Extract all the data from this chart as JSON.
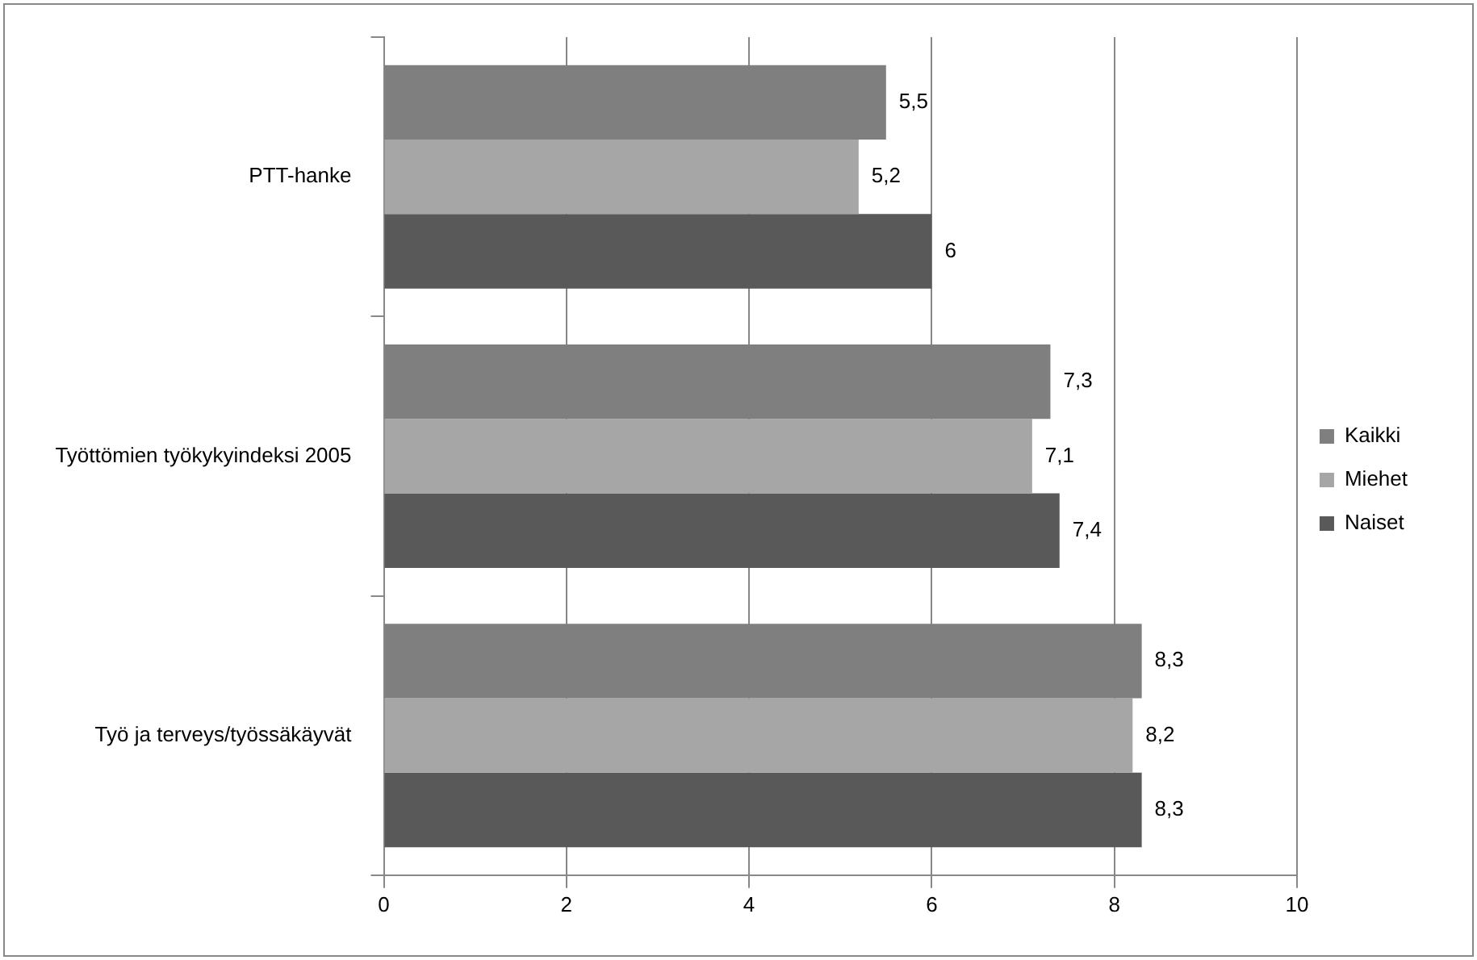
{
  "chart_data": {
    "type": "bar",
    "orientation": "horizontal",
    "categories": [
      "PTT-hanke",
      "Työttömien työkykyindeksi 2005",
      "Työ ja terveys/työssäkäyvät"
    ],
    "series": [
      {
        "name": "Kaikki",
        "color": "#7f7f7f",
        "values": [
          5.5,
          7.3,
          8.3
        ],
        "value_labels": [
          "5,5",
          "7,3",
          "8,3"
        ]
      },
      {
        "name": "Miehet",
        "color": "#a6a6a6",
        "values": [
          5.2,
          7.1,
          8.2
        ],
        "value_labels": [
          "5,2",
          "7,1",
          "8,2"
        ]
      },
      {
        "name": "Naiset",
        "color": "#595959",
        "values": [
          6,
          7.4,
          8.3
        ],
        "value_labels": [
          "6",
          "7,4",
          "8,3"
        ]
      }
    ],
    "xlim": [
      0,
      10
    ],
    "xticks": [
      0,
      2,
      4,
      6,
      8,
      10
    ],
    "grid": "x",
    "legend": "right"
  }
}
